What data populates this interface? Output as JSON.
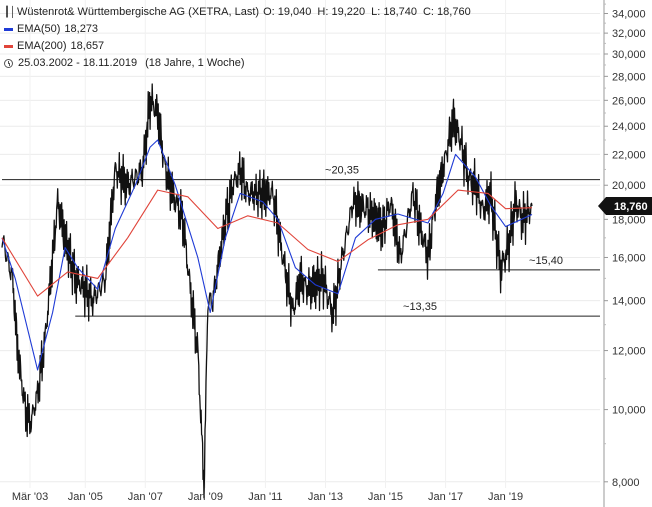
{
  "legend": {
    "title": "Wüstenrot& Württembergische AG (XETRA, Last)",
    "ohlc": {
      "o": "O: 19,040",
      "h": "H: 19,220",
      "l": "L: 18,740",
      "c": "C: 18,760"
    },
    "ema50": {
      "label": "EMA(50)",
      "value": "18,273",
      "color": "#1f3bd6"
    },
    "ema200": {
      "label": "EMA(200)",
      "value": "18,657",
      "color": "#e0443a"
    },
    "range": "25.03.2002 - 18.11.2019",
    "duration": "(18 Jahre, 1 Woche)",
    "icons": {
      "chart": "candlestick-chart-icon",
      "clock": "clock-icon"
    }
  },
  "chart_data": {
    "type": "line",
    "log_scale": true,
    "ylim": [
      7.8,
      36
    ],
    "y_ticks": [
      8,
      10,
      12,
      14,
      16,
      18,
      20,
      22,
      24,
      26,
      28,
      30,
      32,
      34
    ],
    "y_tick_labels": [
      "8,000",
      "10,000",
      "12,000",
      "14,000",
      "16,000",
      "18,000",
      "20,000",
      "22,000",
      "24,000",
      "26,000",
      "28,000",
      "30,000",
      "32,000",
      "34,000"
    ],
    "xlim": [
      "2002-03-25",
      "2019-11-18"
    ],
    "x_ticks": [
      "2003-03-01",
      "2005-01-01",
      "2007-01-01",
      "2009-01-01",
      "2011-01-01",
      "2013-01-01",
      "2015-01-01",
      "2017-01-01",
      "2019-01-01"
    ],
    "x_tick_labels": [
      "Mär '03",
      "Jan '05",
      "Jan '07",
      "Jan '09",
      "Jan '11",
      "Jan '13",
      "Jan '15",
      "Jan '17",
      "Jan '19"
    ],
    "last_value_label": "18,760",
    "series": [
      {
        "name": "Wüstenrot& Württembergische AG (XETRA, Last)",
        "color": "#111111",
        "points": [
          [
            "2002-03-25",
            17.0
          ],
          [
            "2002-08-01",
            15.0
          ],
          [
            "2002-10-01",
            12.0
          ],
          [
            "2003-01-01",
            10.0
          ],
          [
            "2003-03-10",
            9.6
          ],
          [
            "2003-06-01",
            10.5
          ],
          [
            "2003-09-01",
            12.5
          ],
          [
            "2003-12-01",
            16.0
          ],
          [
            "2004-02-01",
            19.0
          ],
          [
            "2004-05-01",
            17.0
          ],
          [
            "2004-09-01",
            15.0
          ],
          [
            "2005-01-01",
            14.5
          ],
          [
            "2005-04-01",
            14.0
          ],
          [
            "2005-09-01",
            15.0
          ],
          [
            "2006-01-01",
            21.0
          ],
          [
            "2006-06-01",
            20.0
          ],
          [
            "2006-12-01",
            21.0
          ],
          [
            "2007-03-01",
            26.0
          ],
          [
            "2007-06-01",
            25.0
          ],
          [
            "2007-09-01",
            21.0
          ],
          [
            "2007-12-01",
            19.5
          ],
          [
            "2008-04-01",
            18.0
          ],
          [
            "2008-07-01",
            14.5
          ],
          [
            "2008-10-01",
            12.0
          ],
          [
            "2008-12-15",
            7.9
          ],
          [
            "2009-02-01",
            14.0
          ],
          [
            "2009-04-01",
            14.0
          ],
          [
            "2009-09-01",
            18.0
          ],
          [
            "2009-12-01",
            20.0
          ],
          [
            "2010-03-01",
            21.0
          ],
          [
            "2010-06-01",
            19.5
          ],
          [
            "2010-12-01",
            19.5
          ],
          [
            "2011-04-01",
            19.5
          ],
          [
            "2011-08-01",
            16.0
          ],
          [
            "2011-12-01",
            13.5
          ],
          [
            "2012-03-01",
            15.0
          ],
          [
            "2012-06-01",
            14.5
          ],
          [
            "2012-12-01",
            15.0
          ],
          [
            "2013-04-01",
            13.4
          ],
          [
            "2013-07-01",
            15.5
          ],
          [
            "2013-12-01",
            19.0
          ],
          [
            "2014-06-01",
            18.5
          ],
          [
            "2014-12-01",
            17.5
          ],
          [
            "2015-03-01",
            19.0
          ],
          [
            "2015-07-01",
            16.0
          ],
          [
            "2015-12-01",
            19.5
          ],
          [
            "2016-03-01",
            17.5
          ],
          [
            "2016-06-01",
            16.0
          ],
          [
            "2016-09-01",
            19.0
          ],
          [
            "2016-12-01",
            21.0
          ],
          [
            "2017-04-01",
            24.5
          ],
          [
            "2017-07-01",
            23.0
          ],
          [
            "2017-10-01",
            20.5
          ],
          [
            "2018-01-01",
            20.0
          ],
          [
            "2018-04-01",
            18.5
          ],
          [
            "2018-07-01",
            19.5
          ],
          [
            "2018-11-01",
            15.4
          ],
          [
            "2019-02-01",
            16.5
          ],
          [
            "2019-05-01",
            19.0
          ],
          [
            "2019-08-01",
            18.0
          ],
          [
            "2019-11-18",
            18.76
          ]
        ]
      },
      {
        "name": "EMA(50)",
        "color": "#1f3bd6",
        "points": [
          [
            "2002-03-25",
            17.0
          ],
          [
            "2002-09-01",
            15.0
          ],
          [
            "2003-06-01",
            11.3
          ],
          [
            "2003-12-01",
            13.5
          ],
          [
            "2004-05-01",
            16.5
          ],
          [
            "2004-10-01",
            15.5
          ],
          [
            "2005-06-01",
            14.5
          ],
          [
            "2006-01-01",
            17.5
          ],
          [
            "2006-09-01",
            20.0
          ],
          [
            "2007-03-01",
            22.5
          ],
          [
            "2007-06-01",
            23.0
          ],
          [
            "2008-01-01",
            20.0
          ],
          [
            "2008-10-01",
            16.0
          ],
          [
            "2009-03-01",
            13.5
          ],
          [
            "2009-09-01",
            17.0
          ],
          [
            "2010-03-01",
            19.5
          ],
          [
            "2010-12-01",
            19.0
          ],
          [
            "2011-06-01",
            18.0
          ],
          [
            "2012-01-01",
            15.5
          ],
          [
            "2012-09-01",
            14.7
          ],
          [
            "2013-06-01",
            14.3
          ],
          [
            "2014-01-01",
            17.0
          ],
          [
            "2014-09-01",
            18.0
          ],
          [
            "2015-06-01",
            18.3
          ],
          [
            "2016-06-01",
            17.8
          ],
          [
            "2016-12-01",
            19.5
          ],
          [
            "2017-05-01",
            22.0
          ],
          [
            "2018-01-01",
            20.5
          ],
          [
            "2018-07-01",
            18.8
          ],
          [
            "2019-01-01",
            17.6
          ],
          [
            "2019-11-18",
            18.273
          ]
        ]
      },
      {
        "name": "EMA(200)",
        "color": "#e0443a",
        "points": [
          [
            "2002-03-25",
            17.0
          ],
          [
            "2003-06-01",
            14.2
          ],
          [
            "2004-06-01",
            15.3
          ],
          [
            "2005-06-01",
            15.0
          ],
          [
            "2006-06-01",
            17.0
          ],
          [
            "2007-06-01",
            19.7
          ],
          [
            "2008-06-01",
            19.3
          ],
          [
            "2009-06-01",
            17.5
          ],
          [
            "2010-06-01",
            18.2
          ],
          [
            "2011-06-01",
            17.8
          ],
          [
            "2012-06-01",
            16.4
          ],
          [
            "2013-06-01",
            15.8
          ],
          [
            "2014-06-01",
            16.9
          ],
          [
            "2015-06-01",
            17.7
          ],
          [
            "2016-06-01",
            18.0
          ],
          [
            "2017-06-01",
            19.7
          ],
          [
            "2018-06-01",
            19.5
          ],
          [
            "2019-01-01",
            18.6
          ],
          [
            "2019-11-18",
            18.657
          ]
        ]
      }
    ],
    "annotations": [
      {
        "label": "~20,35",
        "value": 20.35,
        "from": "2002-03-25",
        "to": "2019-11-18"
      },
      {
        "label": "~15,40",
        "value": 15.4,
        "from": "2014-10-01",
        "to": "2019-11-18"
      },
      {
        "label": "~13,35",
        "value": 13.35,
        "from": "2004-09-01",
        "to": "2019-11-18"
      }
    ],
    "grid": true
  }
}
